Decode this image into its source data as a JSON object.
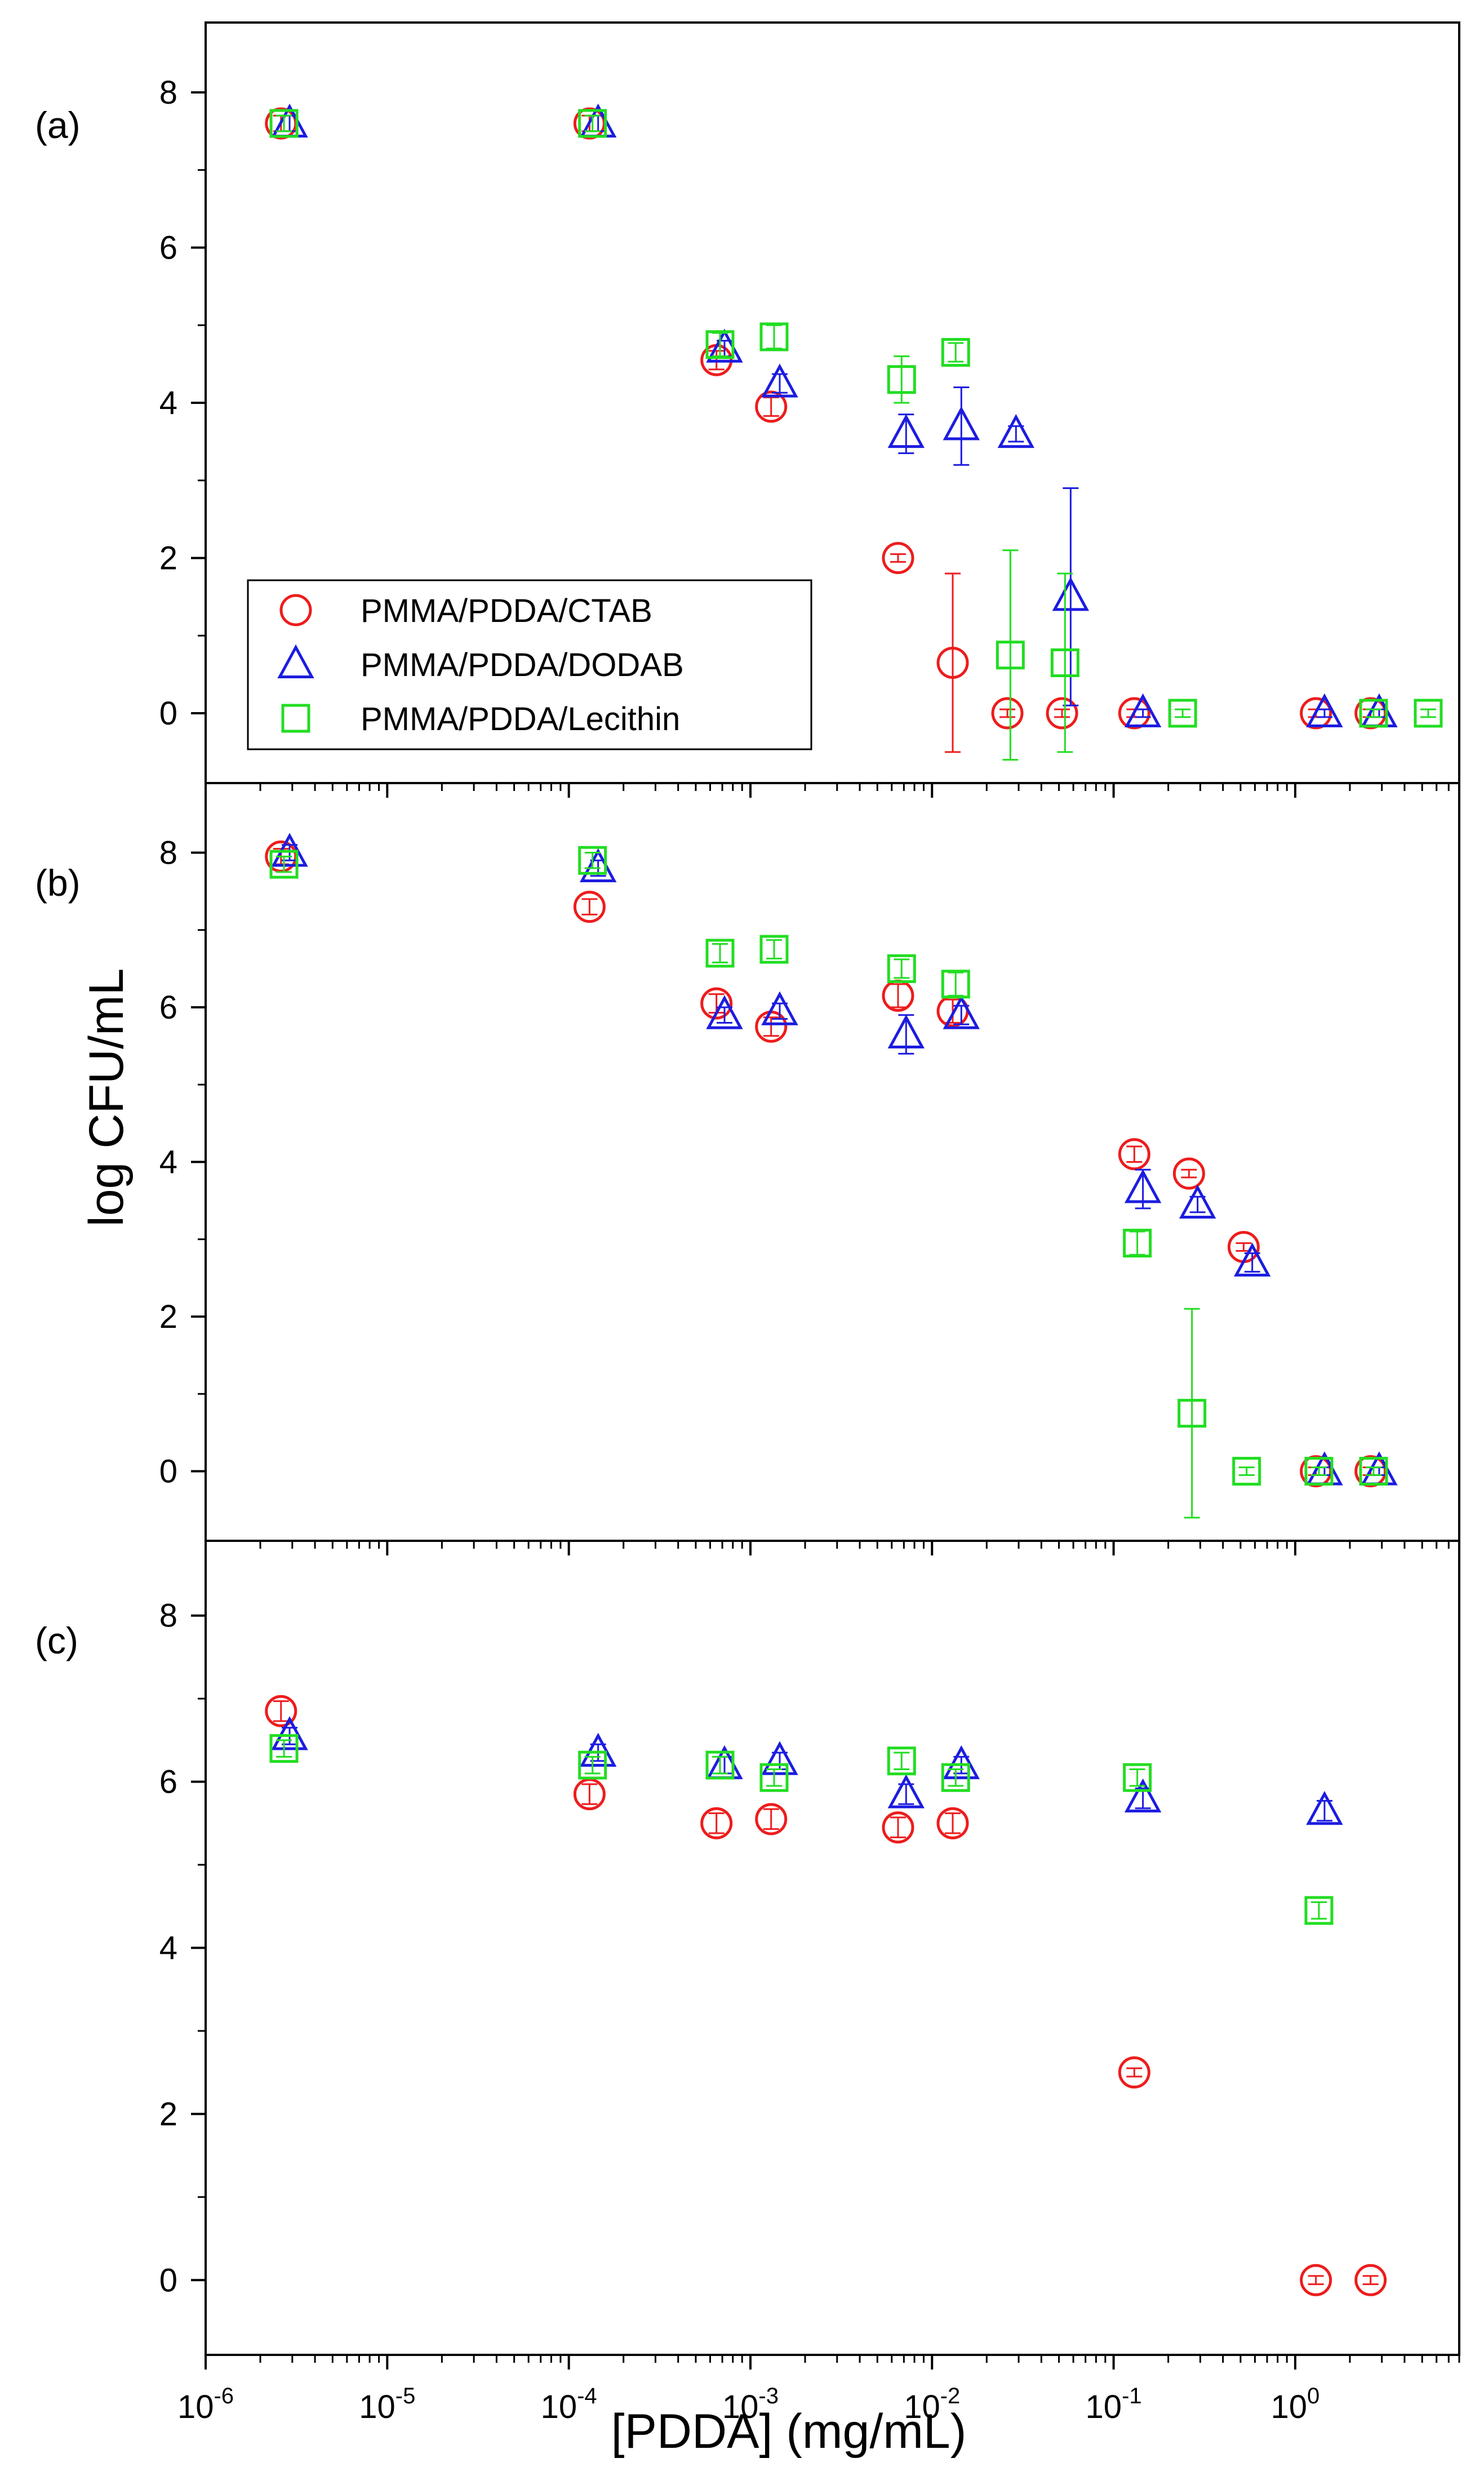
{
  "figure": {
    "ylabel": "log CFU/mL",
    "xlabel": "[PDDA] (mg/mL)",
    "colors": {
      "ctab": "#ee1c1c",
      "dodab": "#1c1ce0",
      "lecithin": "#22dd22",
      "axis": "#000000"
    },
    "legend": {
      "placement": "inside-lower-left of panel (a)",
      "entries": [
        {
          "label": "PMMA/PDDA/CTAB",
          "marker": "circle"
        },
        {
          "label": "PMMA/PDDA/DODAB",
          "marker": "triangle"
        },
        {
          "label": "PMMA/PDDA/Lecithin",
          "marker": "square"
        }
      ]
    }
  },
  "chart_data": [
    {
      "panel": "(a)",
      "type": "scatter",
      "x_scale": "log",
      "xlim": [
        1e-06,
        8
      ],
      "ylim": [
        -0.9,
        8.9
      ],
      "x_ticks": [
        "10-6",
        "10-5",
        "10-4",
        "10-3",
        "10-2",
        "10-1",
        "100"
      ],
      "y_ticks": [
        0,
        2,
        4,
        6,
        8
      ],
      "series": [
        {
          "name": "PMMA/PDDA/CTAB",
          "marker": "circle",
          "color": "ctab",
          "points": [
            {
              "x": 2.6e-06,
              "y": 7.6,
              "err": 0.1
            },
            {
              "x": 0.00013,
              "y": 7.6,
              "err": 0.1
            },
            {
              "x": 0.00065,
              "y": 4.55,
              "err": 0.12
            },
            {
              "x": 0.0013,
              "y": 3.95,
              "err": 0.12
            },
            {
              "x": 0.0065,
              "y": 2.0,
              "err": 0.05
            },
            {
              "x": 0.013,
              "y": 0.65,
              "err": 1.15
            },
            {
              "x": 0.026,
              "y": 0.0,
              "err": 0.05
            },
            {
              "x": 0.052,
              "y": 0.0,
              "err": 0.05
            },
            {
              "x": 0.13,
              "y": 0.0,
              "err": 0.05
            },
            {
              "x": 1.3,
              "y": 0.0,
              "err": 0.05
            },
            {
              "x": 2.6,
              "y": 0.0,
              "err": 0.05
            }
          ]
        },
        {
          "name": "PMMA/PDDA/DODAB",
          "marker": "triangle",
          "color": "dodab",
          "points": [
            {
              "x": 2.9e-06,
              "y": 7.6,
              "err": 0.1
            },
            {
              "x": 0.000145,
              "y": 7.6,
              "err": 0.1
            },
            {
              "x": 0.00072,
              "y": 4.7,
              "err": 0.1
            },
            {
              "x": 0.00145,
              "y": 4.25,
              "err": 0.12
            },
            {
              "x": 0.0072,
              "y": 3.6,
              "err": 0.25
            },
            {
              "x": 0.0145,
              "y": 3.7,
              "err": 0.5
            },
            {
              "x": 0.029,
              "y": 3.6,
              "err": 0.1
            },
            {
              "x": 0.058,
              "y": 1.5,
              "err": 1.4
            },
            {
              "x": 0.145,
              "y": 0.0,
              "err": 0.05
            },
            {
              "x": 1.45,
              "y": 0.0,
              "err": 0.05
            },
            {
              "x": 2.9,
              "y": 0.0,
              "err": 0.05
            }
          ]
        },
        {
          "name": "PMMA/PDDA/Lecithin",
          "marker": "square",
          "color": "lecithin",
          "points": [
            {
              "x": 2.7e-06,
              "y": 7.6,
              "err": 0.1
            },
            {
              "x": 0.000135,
              "y": 7.6,
              "err": 0.1
            },
            {
              "x": 0.00068,
              "y": 4.75,
              "err": 0.15
            },
            {
              "x": 0.00135,
              "y": 4.85,
              "err": 0.15
            },
            {
              "x": 0.0068,
              "y": 4.3,
              "err": 0.3
            },
            {
              "x": 0.0135,
              "y": 4.65,
              "err": 0.12
            },
            {
              "x": 0.027,
              "y": 0.75,
              "err": 1.35
            },
            {
              "x": 0.054,
              "y": 0.65,
              "err": 1.15
            },
            {
              "x": 0.24,
              "y": 0.0,
              "err": 0.05
            },
            {
              "x": 2.7,
              "y": 0.0,
              "err": 0.05
            },
            {
              "x": 5.4,
              "y": 0.0,
              "err": 0.05
            }
          ]
        }
      ]
    },
    {
      "panel": "(b)",
      "type": "scatter",
      "x_scale": "log",
      "xlim": [
        1e-06,
        8
      ],
      "ylim": [
        -0.9,
        8.9
      ],
      "x_ticks": [
        "10-6",
        "10-5",
        "10-4",
        "10-3",
        "10-2",
        "10-1",
        "100"
      ],
      "y_ticks": [
        0,
        2,
        4,
        6,
        8
      ],
      "series": [
        {
          "name": "PMMA/PDDA/CTAB",
          "marker": "circle",
          "color": "ctab",
          "points": [
            {
              "x": 2.6e-06,
              "y": 7.95,
              "err": 0.1
            },
            {
              "x": 0.00013,
              "y": 7.3,
              "err": 0.1
            },
            {
              "x": 0.00065,
              "y": 6.05,
              "err": 0.12
            },
            {
              "x": 0.0013,
              "y": 5.75,
              "err": 0.12
            },
            {
              "x": 0.0065,
              "y": 6.15,
              "err": 0.15
            },
            {
              "x": 0.013,
              "y": 5.95,
              "err": 0.15
            },
            {
              "x": 0.13,
              "y": 4.1,
              "err": 0.1
            },
            {
              "x": 0.26,
              "y": 3.85,
              "err": 0.05
            },
            {
              "x": 0.52,
              "y": 2.9,
              "err": 0.05
            },
            {
              "x": 1.3,
              "y": 0.0,
              "err": 0.05
            },
            {
              "x": 2.6,
              "y": 0.0,
              "err": 0.05
            }
          ]
        },
        {
          "name": "PMMA/PDDA/DODAB",
          "marker": "triangle",
          "color": "dodab",
          "points": [
            {
              "x": 2.9e-06,
              "y": 8.0,
              "err": 0.1
            },
            {
              "x": 0.000145,
              "y": 7.8,
              "err": 0.1
            },
            {
              "x": 0.00072,
              "y": 5.9,
              "err": 0.1
            },
            {
              "x": 0.00145,
              "y": 5.95,
              "err": 0.1
            },
            {
              "x": 0.0072,
              "y": 5.65,
              "err": 0.25
            },
            {
              "x": 0.0145,
              "y": 5.9,
              "err": 0.12
            },
            {
              "x": 0.145,
              "y": 3.65,
              "err": 0.25
            },
            {
              "x": 0.29,
              "y": 3.45,
              "err": 0.1
            },
            {
              "x": 0.58,
              "y": 2.7,
              "err": 0.12
            },
            {
              "x": 1.45,
              "y": 0.0,
              "err": 0.05
            },
            {
              "x": 2.9,
              "y": 0.0,
              "err": 0.05
            }
          ]
        },
        {
          "name": "PMMA/PDDA/Lecithin",
          "marker": "square",
          "color": "lecithin",
          "points": [
            {
              "x": 2.7e-06,
              "y": 7.85,
              "err": 0.1
            },
            {
              "x": 0.000135,
              "y": 7.9,
              "err": 0.1
            },
            {
              "x": 0.00068,
              "y": 6.7,
              "err": 0.12
            },
            {
              "x": 0.00135,
              "y": 6.75,
              "err": 0.12
            },
            {
              "x": 0.0068,
              "y": 6.5,
              "err": 0.12
            },
            {
              "x": 0.0135,
              "y": 6.3,
              "err": 0.15
            },
            {
              "x": 0.135,
              "y": 2.95,
              "err": 0.15
            },
            {
              "x": 0.27,
              "y": 0.75,
              "err": 1.35
            },
            {
              "x": 0.54,
              "y": 0.0,
              "err": 0.05
            },
            {
              "x": 1.35,
              "y": 0.0,
              "err": 0.05
            },
            {
              "x": 2.7,
              "y": 0.0,
              "err": 0.05
            }
          ]
        }
      ]
    },
    {
      "panel": "(c)",
      "type": "scatter",
      "x_scale": "log",
      "xlim": [
        1e-06,
        8
      ],
      "ylim": [
        -0.9,
        8.9
      ],
      "x_ticks": [
        "10-6",
        "10-5",
        "10-4",
        "10-3",
        "10-2",
        "10-1",
        "100"
      ],
      "y_ticks": [
        0,
        2,
        4,
        6,
        8
      ],
      "series": [
        {
          "name": "PMMA/PDDA/CTAB",
          "marker": "circle",
          "color": "ctab",
          "points": [
            {
              "x": 2.6e-06,
              "y": 6.85,
              "err": 0.12
            },
            {
              "x": 0.00013,
              "y": 5.85,
              "err": 0.12
            },
            {
              "x": 0.00065,
              "y": 5.5,
              "err": 0.12
            },
            {
              "x": 0.0013,
              "y": 5.55,
              "err": 0.12
            },
            {
              "x": 0.0065,
              "y": 5.45,
              "err": 0.12
            },
            {
              "x": 0.013,
              "y": 5.5,
              "err": 0.12
            },
            {
              "x": 0.13,
              "y": 2.5,
              "err": 0.05
            },
            {
              "x": 1.3,
              "y": 0.0,
              "err": 0.05
            },
            {
              "x": 2.6,
              "y": 0.0,
              "err": 0.05
            }
          ]
        },
        {
          "name": "PMMA/PDDA/DODAB",
          "marker": "triangle",
          "color": "dodab",
          "points": [
            {
              "x": 2.9e-06,
              "y": 6.55,
              "err": 0.1
            },
            {
              "x": 0.000145,
              "y": 6.35,
              "err": 0.1
            },
            {
              "x": 0.00072,
              "y": 6.2,
              "err": 0.1
            },
            {
              "x": 0.00145,
              "y": 6.25,
              "err": 0.1
            },
            {
              "x": 0.0072,
              "y": 5.85,
              "err": 0.12
            },
            {
              "x": 0.0145,
              "y": 6.2,
              "err": 0.1
            },
            {
              "x": 0.145,
              "y": 5.8,
              "err": 0.12
            },
            {
              "x": 1.45,
              "y": 5.65,
              "err": 0.12
            }
          ]
        },
        {
          "name": "PMMA/PDDA/Lecithin",
          "marker": "square",
          "color": "lecithin",
          "points": [
            {
              "x": 2.7e-06,
              "y": 6.4,
              "err": 0.1
            },
            {
              "x": 0.000135,
              "y": 6.2,
              "err": 0.1
            },
            {
              "x": 0.00068,
              "y": 6.2,
              "err": 0.1
            },
            {
              "x": 0.00135,
              "y": 6.05,
              "err": 0.1
            },
            {
              "x": 0.0068,
              "y": 6.25,
              "err": 0.1
            },
            {
              "x": 0.0135,
              "y": 6.05,
              "err": 0.1
            },
            {
              "x": 0.135,
              "y": 6.05,
              "err": 0.1
            },
            {
              "x": 1.35,
              "y": 4.45,
              "err": 0.1
            }
          ]
        }
      ]
    }
  ]
}
